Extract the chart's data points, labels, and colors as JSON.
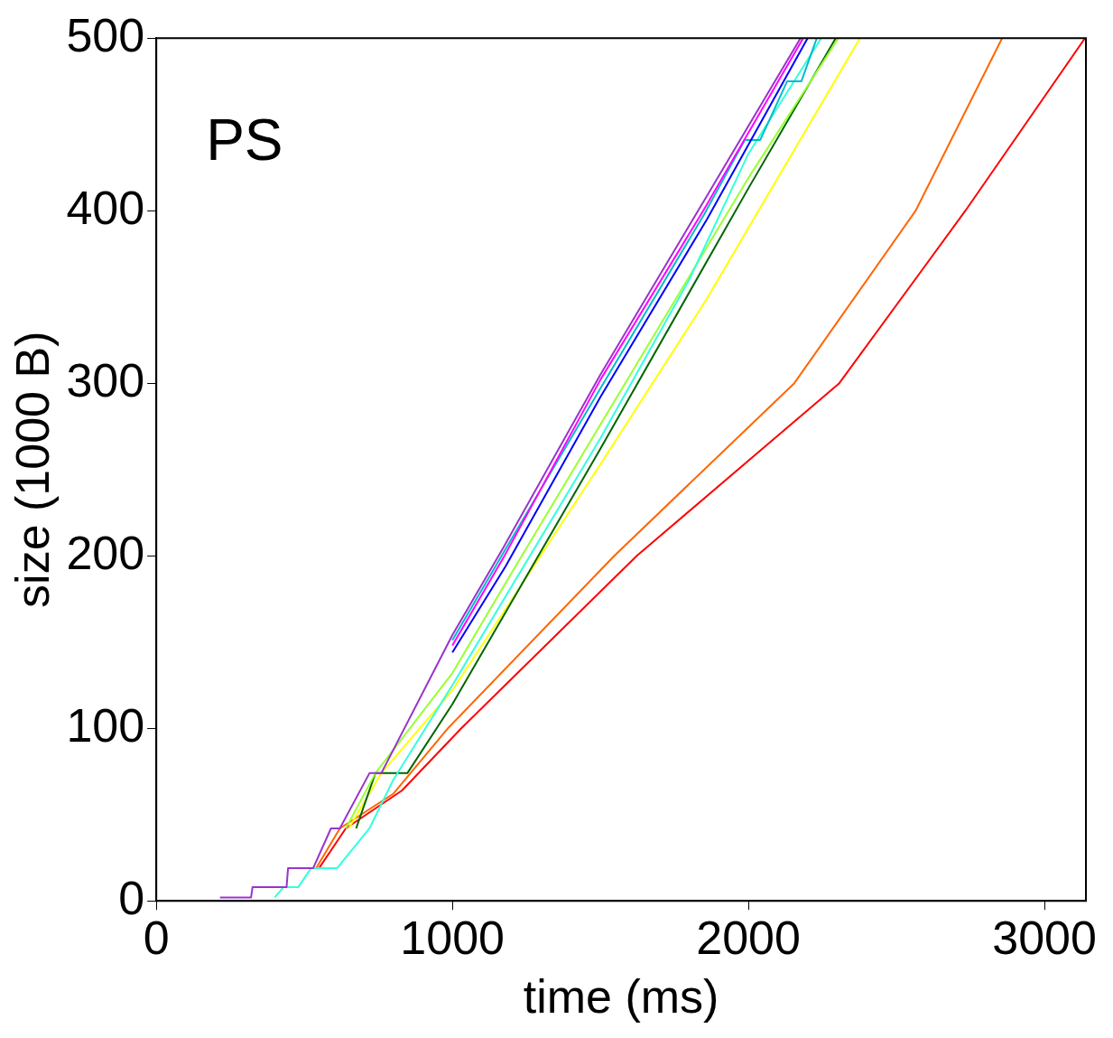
{
  "chart_data": {
    "type": "line",
    "xlabel": "time (ms)",
    "ylabel": "size (1000 B)",
    "annotations": [
      "PS"
    ],
    "xlim": [
      0,
      3140
    ],
    "xticks": [
      0,
      1000,
      2000,
      3000
    ],
    "ylim": [
      0,
      500
    ],
    "yticks": [
      0,
      100,
      200,
      300,
      400,
      500
    ],
    "grid": false,
    "legend": false,
    "marker": "none",
    "line_style": "solid",
    "series": [
      {
        "color": "#9933cc",
        "x": [
          215,
          320,
          325,
          440,
          445,
          530,
          590,
          620,
          720,
          760,
          1000,
          1173,
          1500,
          1851,
          2176
        ],
        "values": [
          2,
          2,
          8,
          8,
          19,
          19,
          42,
          42,
          74,
          74,
          154,
          205,
          305,
          406,
          500
        ]
      },
      {
        "color": "#ff00ff",
        "x": [
          1000,
          1173,
          1500,
          1851,
          2185
        ],
        "values": [
          148,
          199,
          302,
          401,
          500
        ]
      },
      {
        "color": "#0000ff",
        "x": [
          1000,
          1180,
          1500,
          1860,
          2200
        ],
        "values": [
          144,
          194,
          292,
          395,
          500
        ]
      },
      {
        "color": "#00bbcc",
        "x": [
          1000,
          1173,
          1500,
          1851,
          1988,
          2040,
          2131,
          2179,
          2231
        ],
        "values": [
          151,
          202,
          297,
          398,
          441,
          441,
          475,
          475,
          500
        ]
      },
      {
        "color": "#33ffdd",
        "x": [
          400,
          430,
          480,
          523,
          611,
          720,
          800,
          1000,
          1500,
          1800,
          2000,
          2246
        ],
        "values": [
          2,
          8,
          8,
          19,
          19,
          42,
          70,
          125,
          268,
          360,
          433,
          500
        ]
      },
      {
        "color": "#99ff33",
        "x": [
          640,
          740,
          1000,
          1200,
          1500,
          2000,
          2304
        ],
        "values": [
          42,
          74,
          132,
          190,
          276,
          419,
          500
        ]
      },
      {
        "color": "#006600",
        "x": [
          675,
          740,
          848,
          1000,
          1500,
          2000,
          2295
        ],
        "values": [
          42,
          74,
          74,
          114,
          262,
          413,
          500
        ]
      },
      {
        "color": "#ffff00",
        "x": [
          650,
          760,
          1000,
          1500,
          1860,
          2000,
          2377
        ],
        "values": [
          42,
          74,
          122,
          253,
          349,
          390,
          500
        ]
      },
      {
        "color": "#ff6600",
        "x": [
          540,
          620,
          800,
          985,
          1547,
          2155,
          2565,
          2857
        ],
        "values": [
          19,
          42,
          62,
          100,
          200,
          300,
          400,
          500
        ]
      },
      {
        "color": "#ff0000",
        "x": [
          550,
          640,
          830,
          1030,
          1623,
          2307,
          2733,
          3137
        ],
        "values": [
          19,
          42,
          64,
          100,
          200,
          300,
          400,
          500
        ]
      }
    ]
  }
}
